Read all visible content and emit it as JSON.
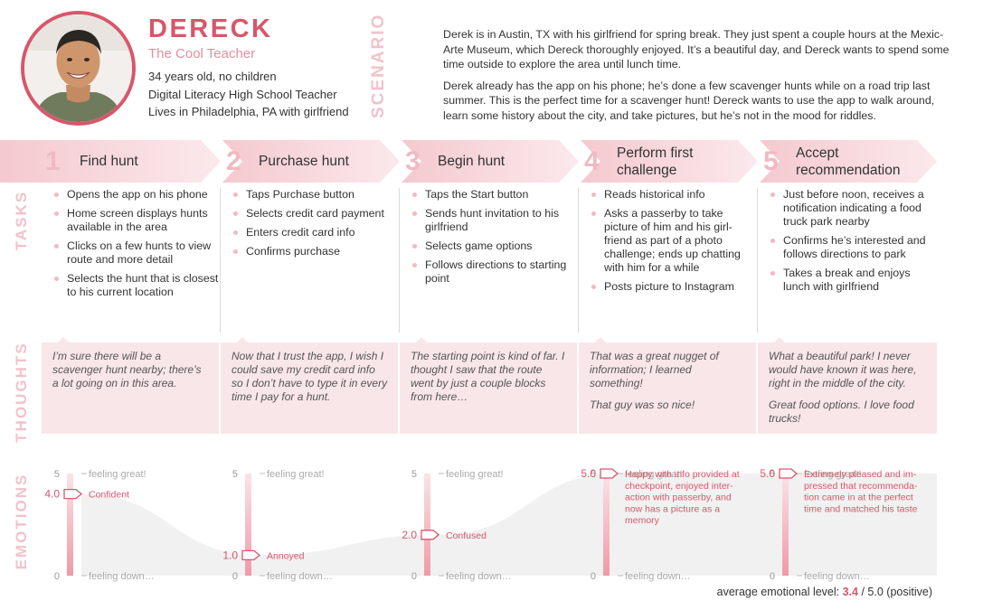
{
  "persona": {
    "name": "DERECK",
    "role": "The Cool Teacher",
    "facts": [
      "34 years old, no children",
      "Digital Literacy High School Teacher",
      "Lives in Philadelphia, PA with girlfriend"
    ]
  },
  "scenario": {
    "label": "SCENARIO",
    "paragraphs": [
      "Derek is in Austin, TX with his girlfriend for spring break. They just spent a couple hours at the Mexic-Arte Museum, which Dereck thoroughly enjoyed. It’s a beautiful day, and Dereck wants to spend some time outside to explore the area until lunch time.",
      "Derek already has the app on his phone; he’s done a few scavenger hunts while on a road trip last summer. This is the perfect time for a scavenger hunt! Dereck wants to use the app to walk around, learn some history about the city, and take pictures, but he’s not in the mood for riddles."
    ]
  },
  "row_labels": {
    "tasks": "TASKS",
    "thoughts": "THOUGHTS",
    "emotions": "EMOTIONS"
  },
  "steps": [
    {
      "number": "1",
      "title": [
        "Find hunt"
      ],
      "tasks": [
        "Opens the app on his phone",
        "Home screen displays hunts available in the area",
        "Clicks on a few hunts to view route and more detail",
        "Selects the hunt that is closest to his current location"
      ],
      "thoughts": [
        "I’m sure there will be a scavenger hunt nearby; there’s a lot going on in this area."
      ],
      "emotion": {
        "value": 4.0,
        "value_label": "4.0",
        "label": [
          "Confident"
        ]
      }
    },
    {
      "number": "2",
      "title": [
        "Purchase hunt"
      ],
      "tasks": [
        "Taps Purchase button",
        "Selects credit card payment",
        "Enters credit card info",
        "Confirms purchase"
      ],
      "thoughts": [
        "Now that I trust the app, I wish I could save my credit card info so I don’t have to type it in every time I pay for a hunt."
      ],
      "emotion": {
        "value": 1.0,
        "value_label": "1.0",
        "label": [
          "Annoyed"
        ]
      }
    },
    {
      "number": "3",
      "title": [
        "Begin hunt"
      ],
      "tasks": [
        "Taps the Start button",
        "Sends hunt invitation to his girlfriend",
        "Selects game options",
        "Follows directions to starting point"
      ],
      "thoughts": [
        "The starting point is kind of far. I thought I saw that the route went by just a couple blocks from here…"
      ],
      "emotion": {
        "value": 2.0,
        "value_label": "2.0",
        "label": [
          "Confused"
        ]
      }
    },
    {
      "number": "4",
      "title": [
        "Perform first",
        "challenge"
      ],
      "tasks": [
        "Reads historical info",
        "Asks a passerby to take picture of him and his girl-friend as part of a photo challenge; ends up chatting with him for a while",
        "Posts picture to Instagram"
      ],
      "thoughts": [
        "That was a great nugget of information; I learned something!",
        "That guy was so nice!"
      ],
      "emotion": {
        "value": 5.0,
        "value_label": "5.0",
        "label": [
          "Happy with info provided at",
          "checkpoint, enjoyed inter-",
          "action with passerby, and",
          "now has a picture as a",
          "memory"
        ]
      }
    },
    {
      "number": "5",
      "title": [
        "Accept",
        "recommendation"
      ],
      "tasks": [
        "Just before noon, receives a notification indicating a food truck park nearby",
        "Confirms he’s interested and follows directions to park",
        "Takes a break and enjoys lunch with girlfriend"
      ],
      "thoughts": [
        "What a beautiful park! I never would have known it was here, right in the middle of the city.",
        "Great food options. I love food trucks!"
      ],
      "emotion": {
        "value": 5.0,
        "value_label": "5.0",
        "label": [
          "Extremely pleased and im-",
          "pressed that recommenda-",
          "tion came in at the perfect",
          "time and matched his taste"
        ]
      }
    }
  ],
  "emotion_scale": {
    "max_label": "5",
    "min_label": "0",
    "top_text": "feeling great!",
    "bottom_text": "feeling down…",
    "max": 5,
    "min": 0
  },
  "summary": {
    "prefix": "average emotional level:",
    "value": "3.4",
    "suffix": "/ 5.0 (positive)"
  },
  "colors": {
    "accent": "#d7576a",
    "accent_light": "#f2b9c2",
    "thought_bg": "#f9e6e8",
    "banner_start": "#f4c9cf",
    "banner_end": "#fbe9ec"
  }
}
